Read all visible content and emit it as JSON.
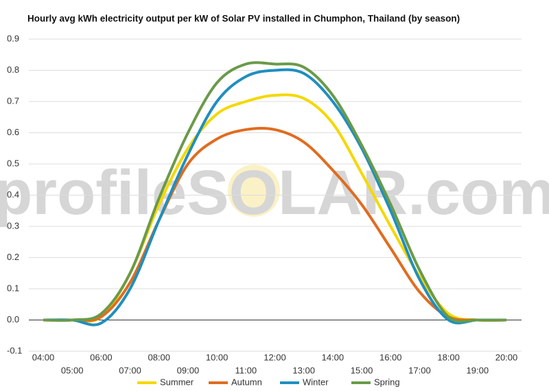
{
  "chart_data": {
    "type": "line",
    "title": "Hourly avg kWh electricity output per kW of Solar PV installed in Chumphon, Thailand (by season)",
    "watermark": "profileSOLAR.com",
    "categories": [
      "04:00",
      "05:00",
      "06:00",
      "07:00",
      "08:00",
      "09:00",
      "10:00",
      "11:00",
      "12:00",
      "13:00",
      "14:00",
      "15:00",
      "16:00",
      "17:00",
      "18:00",
      "19:00",
      "20:00"
    ],
    "series": [
      {
        "name": "Summer",
        "color": "#f5d800",
        "values": [
          0,
          0,
          0.01,
          0.15,
          0.37,
          0.55,
          0.66,
          0.7,
          0.72,
          0.71,
          0.63,
          0.47,
          0.3,
          0.14,
          0.02,
          0,
          0
        ]
      },
      {
        "name": "Autumn",
        "color": "#e06c1f",
        "values": [
          0,
          0,
          0.01,
          0.12,
          0.32,
          0.5,
          0.58,
          0.61,
          0.61,
          0.57,
          0.48,
          0.37,
          0.23,
          0.09,
          0.01,
          0,
          0
        ]
      },
      {
        "name": "Winter",
        "color": "#1f8fbf",
        "values": [
          0,
          0,
          -0.01,
          0.1,
          0.32,
          0.53,
          0.7,
          0.78,
          0.8,
          0.79,
          0.7,
          0.55,
          0.35,
          0.13,
          0,
          0,
          0
        ]
      },
      {
        "name": "Spring",
        "color": "#6a9a4a",
        "values": [
          0,
          0,
          0.02,
          0.15,
          0.39,
          0.6,
          0.76,
          0.82,
          0.82,
          0.81,
          0.72,
          0.56,
          0.37,
          0.16,
          0.01,
          0,
          0
        ]
      }
    ],
    "ylim": [
      -0.1,
      0.9
    ],
    "yticks": [
      {
        "value": -0.1,
        "label": "-0.1"
      },
      {
        "value": 0,
        "label": "0.0"
      },
      0.1,
      0.2,
      0.3,
      0.4,
      0.5,
      0.6,
      0.7,
      0.8,
      0.9
    ],
    "grid": true,
    "legend": "bottom"
  }
}
